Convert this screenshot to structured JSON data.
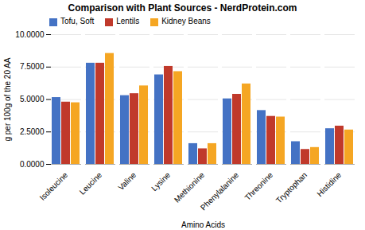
{
  "chart_data": {
    "type": "bar",
    "title": "Comparison with Plant Sources - NerdProtein.com",
    "xlabel": "Amino Acids",
    "ylabel": "g per 100g of the 20 AA",
    "categories": [
      "Isoleucine",
      "Leucine",
      "Valine",
      "Lysine",
      "Methionine",
      "Phenylalanine",
      "Threonine",
      "Tryptophan",
      "Histidine"
    ],
    "series": [
      {
        "name": "Tofu, Soft",
        "color": "#4472C4",
        "values": [
          5.15,
          7.8,
          5.3,
          6.9,
          1.6,
          5.05,
          4.15,
          1.75,
          2.75
        ]
      },
      {
        "name": "Lentils",
        "color": "#C0392B",
        "values": [
          4.8,
          7.8,
          5.45,
          7.55,
          1.2,
          5.4,
          3.7,
          1.15,
          2.95
        ]
      },
      {
        "name": "Kidney Beans",
        "color": "#F5A623",
        "values": [
          4.75,
          8.55,
          6.05,
          7.15,
          1.6,
          6.2,
          3.65,
          1.3,
          2.65
        ]
      }
    ],
    "ylim": [
      0,
      10.0
    ],
    "yticks": [
      {
        "value": 0.0,
        "label": "0.0000"
      },
      {
        "value": 2.5,
        "label": "2.5000"
      },
      {
        "value": 5.0,
        "label": "5.0000"
      },
      {
        "value": 7.5,
        "label": "7.5000"
      },
      {
        "value": 10.0,
        "label": "10.0000"
      }
    ],
    "grid": true,
    "legend": "upper left"
  }
}
